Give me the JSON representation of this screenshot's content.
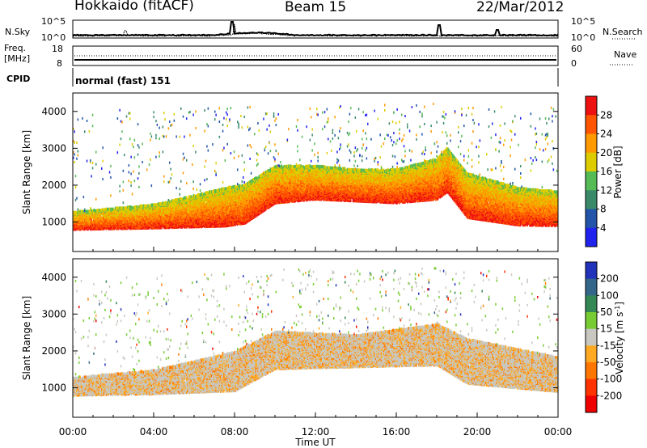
{
  "header": {
    "radar": "Hokkaido (fitACF)",
    "beam": "Beam 15",
    "date": "22/Mar/2012"
  },
  "top_panel": {
    "left_label": "N.Sky",
    "right_label": "N.Search",
    "left_ticks": [
      "10^5",
      "10^0"
    ],
    "right_ticks": [
      "10^5",
      "10^0"
    ]
  },
  "freq_panel": {
    "left_label_1": "Freq.",
    "left_label_2": "[MHz]",
    "right_label": "Nave",
    "left_ticks": [
      "18",
      "8"
    ],
    "right_ticks": [
      "60",
      "0"
    ]
  },
  "cpid_panel": {
    "label": "CPID",
    "text": "normal (fast) 151"
  },
  "time_axis": {
    "label": "Time UT",
    "ticks": [
      "00:00",
      "04:00",
      "08:00",
      "12:00",
      "16:00",
      "20:00",
      "00:00"
    ]
  },
  "chart_data": [
    {
      "type": "heatmap",
      "title": "",
      "ylabel": "Slant Range [km]",
      "xlabel": "Time UT",
      "xlim": [
        0,
        24
      ],
      "ylim": [
        200,
        4500
      ],
      "yticks": [
        1000,
        2000,
        3000,
        4000
      ],
      "colorbar": {
        "label": "Power [dB]",
        "ticks": [
          "28",
          "24",
          "20",
          "16",
          "12",
          "8",
          "4"
        ],
        "colors": [
          "#ee1111",
          "#ff5500",
          "#ff9900",
          "#ddcc00",
          "#55bb55",
          "#3a8a6a",
          "#2255aa",
          "#2222ee"
        ]
      },
      "scatter_band": [
        {
          "x": 0,
          "lower": 780,
          "upper": 1250
        },
        {
          "x": 2,
          "lower": 800,
          "upper": 1350
        },
        {
          "x": 4,
          "lower": 820,
          "upper": 1450
        },
        {
          "x": 6,
          "lower": 850,
          "upper": 1700
        },
        {
          "x": 7.5,
          "lower": 870,
          "upper": 1900
        },
        {
          "x": 8.5,
          "lower": 950,
          "upper": 2000
        },
        {
          "x": 10,
          "lower": 1500,
          "upper": 2500
        },
        {
          "x": 12,
          "lower": 1600,
          "upper": 2500
        },
        {
          "x": 14,
          "lower": 1550,
          "upper": 2400
        },
        {
          "x": 16,
          "lower": 1500,
          "upper": 2400
        },
        {
          "x": 18,
          "lower": 1600,
          "upper": 2700
        },
        {
          "x": 18.5,
          "lower": 1800,
          "upper": 3000
        },
        {
          "x": 19.5,
          "lower": 1100,
          "upper": 2300
        },
        {
          "x": 22,
          "lower": 900,
          "upper": 1900
        },
        {
          "x": 24,
          "lower": 880,
          "upper": 1800
        }
      ]
    },
    {
      "type": "heatmap",
      "title": "",
      "ylabel": "Slant Range [km]",
      "xlabel": "Time UT",
      "xlim": [
        0,
        24
      ],
      "ylim": [
        200,
        4500
      ],
      "yticks": [
        1000,
        2000,
        3000,
        4000
      ],
      "colorbar": {
        "label": "Velocity [m s^-1]",
        "ticks": [
          "200",
          "100",
          "50",
          "15",
          "-15",
          "-50",
          "-100",
          "-200"
        ],
        "colors": [
          "#2233bb",
          "#336688",
          "#338855",
          "#77cc33",
          "#c8c8c0",
          "#ffaa22",
          "#ff7700",
          "#ff3300",
          "#ee0000"
        ]
      },
      "scatter_band": [
        {
          "x": 0,
          "lower": 780,
          "upper": 1250
        },
        {
          "x": 4,
          "lower": 820,
          "upper": 1450
        },
        {
          "x": 8,
          "lower": 900,
          "upper": 1950
        },
        {
          "x": 10,
          "lower": 1500,
          "upper": 2500
        },
        {
          "x": 14,
          "lower": 1550,
          "upper": 2400
        },
        {
          "x": 18,
          "lower": 1600,
          "upper": 2700
        },
        {
          "x": 19.5,
          "lower": 1100,
          "upper": 2300
        },
        {
          "x": 24,
          "lower": 880,
          "upper": 1800
        }
      ]
    }
  ]
}
